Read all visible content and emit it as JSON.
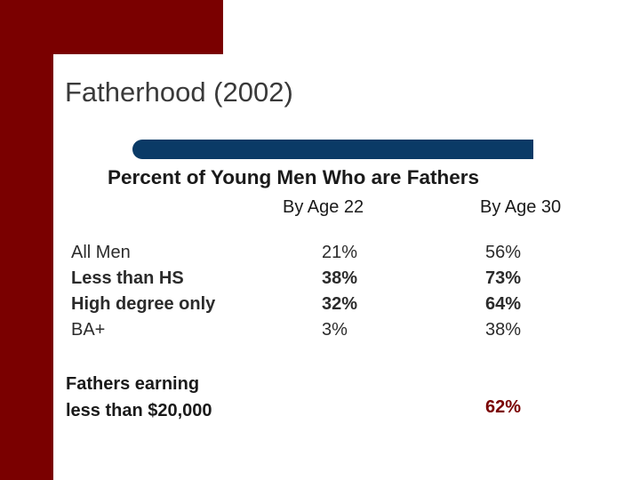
{
  "slide": {
    "title": "Fatherhood (2002)",
    "subtitle": "Percent of Young Men Who are Fathers",
    "columns": [
      "By Age 22",
      "By Age 30"
    ],
    "rows": [
      {
        "label": "All Men",
        "age22": "21%",
        "age30": "56%"
      },
      {
        "label": "Less than HS",
        "age22": "38%",
        "age30": "73%"
      },
      {
        "label": "High degree only",
        "age22": "32%",
        "age30": "64%"
      },
      {
        "label": "BA+",
        "age22": "3%",
        "age30": "38%"
      }
    ],
    "fathers_earning": {
      "label_line1": "Fathers earning",
      "label_line2": "less than $20,000",
      "age30": "62%"
    }
  },
  "colors": {
    "accent_dark_red": "#7a0000",
    "title_rule_blue": "#0a3a66"
  }
}
